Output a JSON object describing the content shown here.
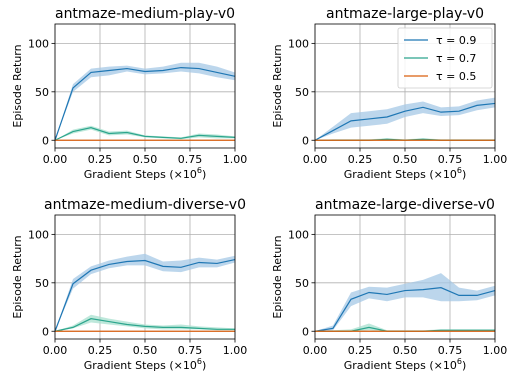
{
  "chart_data": [
    {
      "type": "line",
      "title": "antmaze-medium-play-v0",
      "xlabel": "Gradient Steps (×10",
      "xlabel_sup": "6",
      "xlabel_end": ")",
      "ylabel": "Episode Return",
      "xlim": [
        0,
        1
      ],
      "ylim": [
        -8,
        120
      ],
      "xticks": [
        "0.00",
        "0.25",
        "0.50",
        "0.75",
        "1.00"
      ],
      "yticks": [
        "0",
        "50",
        "100"
      ],
      "grid": true,
      "x": [
        0,
        0.1,
        0.2,
        0.3,
        0.4,
        0.5,
        0.6,
        0.7,
        0.8,
        0.9,
        1.0
      ],
      "series": [
        {
          "name": "τ = 0.9",
          "color": "#1f77b4",
          "fill": "#a6c8e6",
          "values": [
            0,
            54,
            70,
            72,
            74,
            71,
            72,
            75,
            74,
            70,
            66
          ],
          "lo": [
            0,
            50,
            65,
            67,
            71,
            68,
            69,
            71,
            69,
            65,
            62
          ],
          "hi": [
            0,
            58,
            74,
            76,
            77,
            74,
            76,
            80,
            80,
            76,
            70
          ]
        },
        {
          "name": "τ = 0.7",
          "color": "#2ca58d",
          "fill": "#a8e0cf",
          "values": [
            0,
            9,
            13,
            7,
            8,
            4,
            3,
            2,
            5,
            4,
            3
          ],
          "lo": [
            0,
            7,
            11,
            5,
            6,
            3,
            2,
            1,
            3,
            2,
            2
          ],
          "hi": [
            0,
            11,
            15,
            9,
            10,
            5,
            4,
            3,
            7,
            6,
            4
          ]
        },
        {
          "name": "τ = 0.5",
          "color": "#d95f0e",
          "fill": "#f6c6a4",
          "values": [
            0,
            0,
            0,
            0,
            0,
            0,
            0,
            0,
            0,
            0,
            0
          ],
          "lo": [
            0,
            0,
            0,
            0,
            0,
            0,
            0,
            0,
            0,
            0,
            0
          ],
          "hi": [
            0,
            0,
            0,
            0,
            0,
            0,
            0,
            0,
            0,
            0,
            0
          ]
        }
      ]
    },
    {
      "type": "line",
      "title": "antmaze-large-play-v0",
      "xlabel": "Gradient Steps (×10",
      "xlabel_sup": "6",
      "xlabel_end": ")",
      "ylabel": "Episode Return",
      "xlim": [
        0,
        1
      ],
      "ylim": [
        -8,
        120
      ],
      "xticks": [
        "0.00",
        "0.25",
        "0.50",
        "0.75",
        "1.00"
      ],
      "yticks": [
        "0",
        "50",
        "100"
      ],
      "grid": true,
      "legend": "top-right",
      "x": [
        0,
        0.1,
        0.2,
        0.3,
        0.4,
        0.5,
        0.6,
        0.7,
        0.8,
        0.9,
        1.0
      ],
      "series": [
        {
          "name": "τ = 0.9",
          "color": "#1f77b4",
          "fill": "#a6c8e6",
          "values": [
            0,
            10,
            20,
            22,
            24,
            30,
            34,
            29,
            30,
            36,
            38
          ],
          "lo": [
            0,
            7,
            13,
            15,
            17,
            24,
            28,
            25,
            26,
            31,
            34
          ],
          "hi": [
            0,
            14,
            28,
            30,
            32,
            37,
            40,
            34,
            35,
            41,
            44
          ]
        },
        {
          "name": "τ = 0.7",
          "color": "#2ca58d",
          "fill": "#a8e0cf",
          "values": [
            0,
            0,
            0,
            0,
            1,
            0,
            1,
            0,
            0,
            0,
            0
          ],
          "lo": [
            0,
            0,
            0,
            0,
            0,
            0,
            0,
            0,
            0,
            0,
            0
          ],
          "hi": [
            0,
            1,
            1,
            1,
            2,
            1,
            2,
            1,
            1,
            1,
            1
          ]
        },
        {
          "name": "τ = 0.5",
          "color": "#d95f0e",
          "fill": "#f6c6a4",
          "values": [
            0,
            0,
            0,
            0,
            0,
            0,
            0,
            0,
            0,
            0,
            0
          ],
          "lo": [
            0,
            0,
            0,
            0,
            0,
            0,
            0,
            0,
            0,
            0,
            0
          ],
          "hi": [
            0,
            0,
            0,
            0,
            0,
            0,
            0,
            0,
            0,
            0,
            0
          ]
        }
      ]
    },
    {
      "type": "line",
      "title": "antmaze-medium-diverse-v0",
      "xlabel": "Gradient Steps (×10",
      "xlabel_sup": "6",
      "xlabel_end": ")",
      "ylabel": "Episode Return",
      "xlim": [
        0,
        1
      ],
      "ylim": [
        -8,
        120
      ],
      "xticks": [
        "0.00",
        "0.25",
        "0.50",
        "0.75",
        "1.00"
      ],
      "yticks": [
        "0",
        "50",
        "100"
      ],
      "grid": true,
      "x": [
        0,
        0.1,
        0.2,
        0.3,
        0.4,
        0.5,
        0.6,
        0.7,
        0.8,
        0.9,
        1.0
      ],
      "series": [
        {
          "name": "τ = 0.9",
          "color": "#1f77b4",
          "fill": "#a6c8e6",
          "values": [
            0,
            49,
            63,
            69,
            72,
            73,
            67,
            66,
            71,
            70,
            74
          ],
          "lo": [
            0,
            44,
            59,
            65,
            68,
            68,
            62,
            61,
            66,
            66,
            71
          ],
          "hi": [
            0,
            54,
            67,
            73,
            77,
            80,
            72,
            73,
            76,
            74,
            78
          ]
        },
        {
          "name": "τ = 0.7",
          "color": "#2ca58d",
          "fill": "#a8e0cf",
          "values": [
            0,
            4,
            13,
            10,
            7,
            5,
            4,
            4,
            3,
            2,
            2
          ],
          "lo": [
            0,
            3,
            9,
            7,
            5,
            3,
            2,
            2,
            2,
            1,
            1
          ],
          "hi": [
            0,
            6,
            17,
            13,
            10,
            7,
            6,
            7,
            5,
            4,
            3
          ]
        },
        {
          "name": "τ = 0.5",
          "color": "#d95f0e",
          "fill": "#f6c6a4",
          "values": [
            0,
            0,
            0,
            0,
            0,
            0,
            0,
            0,
            0,
            0,
            0
          ],
          "lo": [
            0,
            0,
            0,
            0,
            0,
            0,
            0,
            0,
            0,
            0,
            0
          ],
          "hi": [
            0,
            0,
            0,
            0,
            0,
            0,
            0,
            0,
            0,
            0,
            0
          ]
        }
      ]
    },
    {
      "type": "line",
      "title": "antmaze-large-diverse-v0",
      "xlabel": "Gradient Steps (×10",
      "xlabel_sup": "6",
      "xlabel_end": ")",
      "ylabel": "Episode Return",
      "xlim": [
        0,
        1
      ],
      "ylim": [
        -8,
        120
      ],
      "xticks": [
        "0.00",
        "0.25",
        "0.50",
        "0.75",
        "1.00"
      ],
      "yticks": [
        "0",
        "50",
        "100"
      ],
      "grid": true,
      "x": [
        0,
        0.1,
        0.2,
        0.3,
        0.4,
        0.5,
        0.6,
        0.7,
        0.8,
        0.9,
        1.0
      ],
      "series": [
        {
          "name": "τ = 0.9",
          "color": "#1f77b4",
          "fill": "#a6c8e6",
          "values": [
            0,
            3,
            33,
            40,
            38,
            42,
            43,
            45,
            37,
            37,
            42
          ],
          "lo": [
            0,
            1,
            26,
            34,
            31,
            35,
            35,
            31,
            31,
            32,
            37
          ],
          "hi": [
            0,
            6,
            40,
            46,
            45,
            49,
            53,
            60,
            45,
            42,
            47
          ]
        },
        {
          "name": "τ = 0.7",
          "color": "#2ca58d",
          "fill": "#a8e0cf",
          "values": [
            0,
            0,
            0,
            4,
            0,
            0,
            0,
            1,
            1,
            1,
            1
          ],
          "lo": [
            0,
            0,
            0,
            1,
            0,
            0,
            0,
            0,
            0,
            0,
            0
          ],
          "hi": [
            0,
            1,
            2,
            8,
            1,
            1,
            1,
            2,
            2,
            2,
            2
          ]
        },
        {
          "name": "τ = 0.5",
          "color": "#d95f0e",
          "fill": "#f6c6a4",
          "values": [
            0,
            0,
            0,
            0,
            0,
            0,
            0,
            0,
            0,
            0,
            0
          ],
          "lo": [
            0,
            0,
            0,
            0,
            0,
            0,
            0,
            0,
            0,
            0,
            0
          ],
          "hi": [
            0,
            0,
            0,
            0,
            0,
            0,
            0,
            0,
            0,
            0,
            0
          ]
        }
      ]
    }
  ]
}
